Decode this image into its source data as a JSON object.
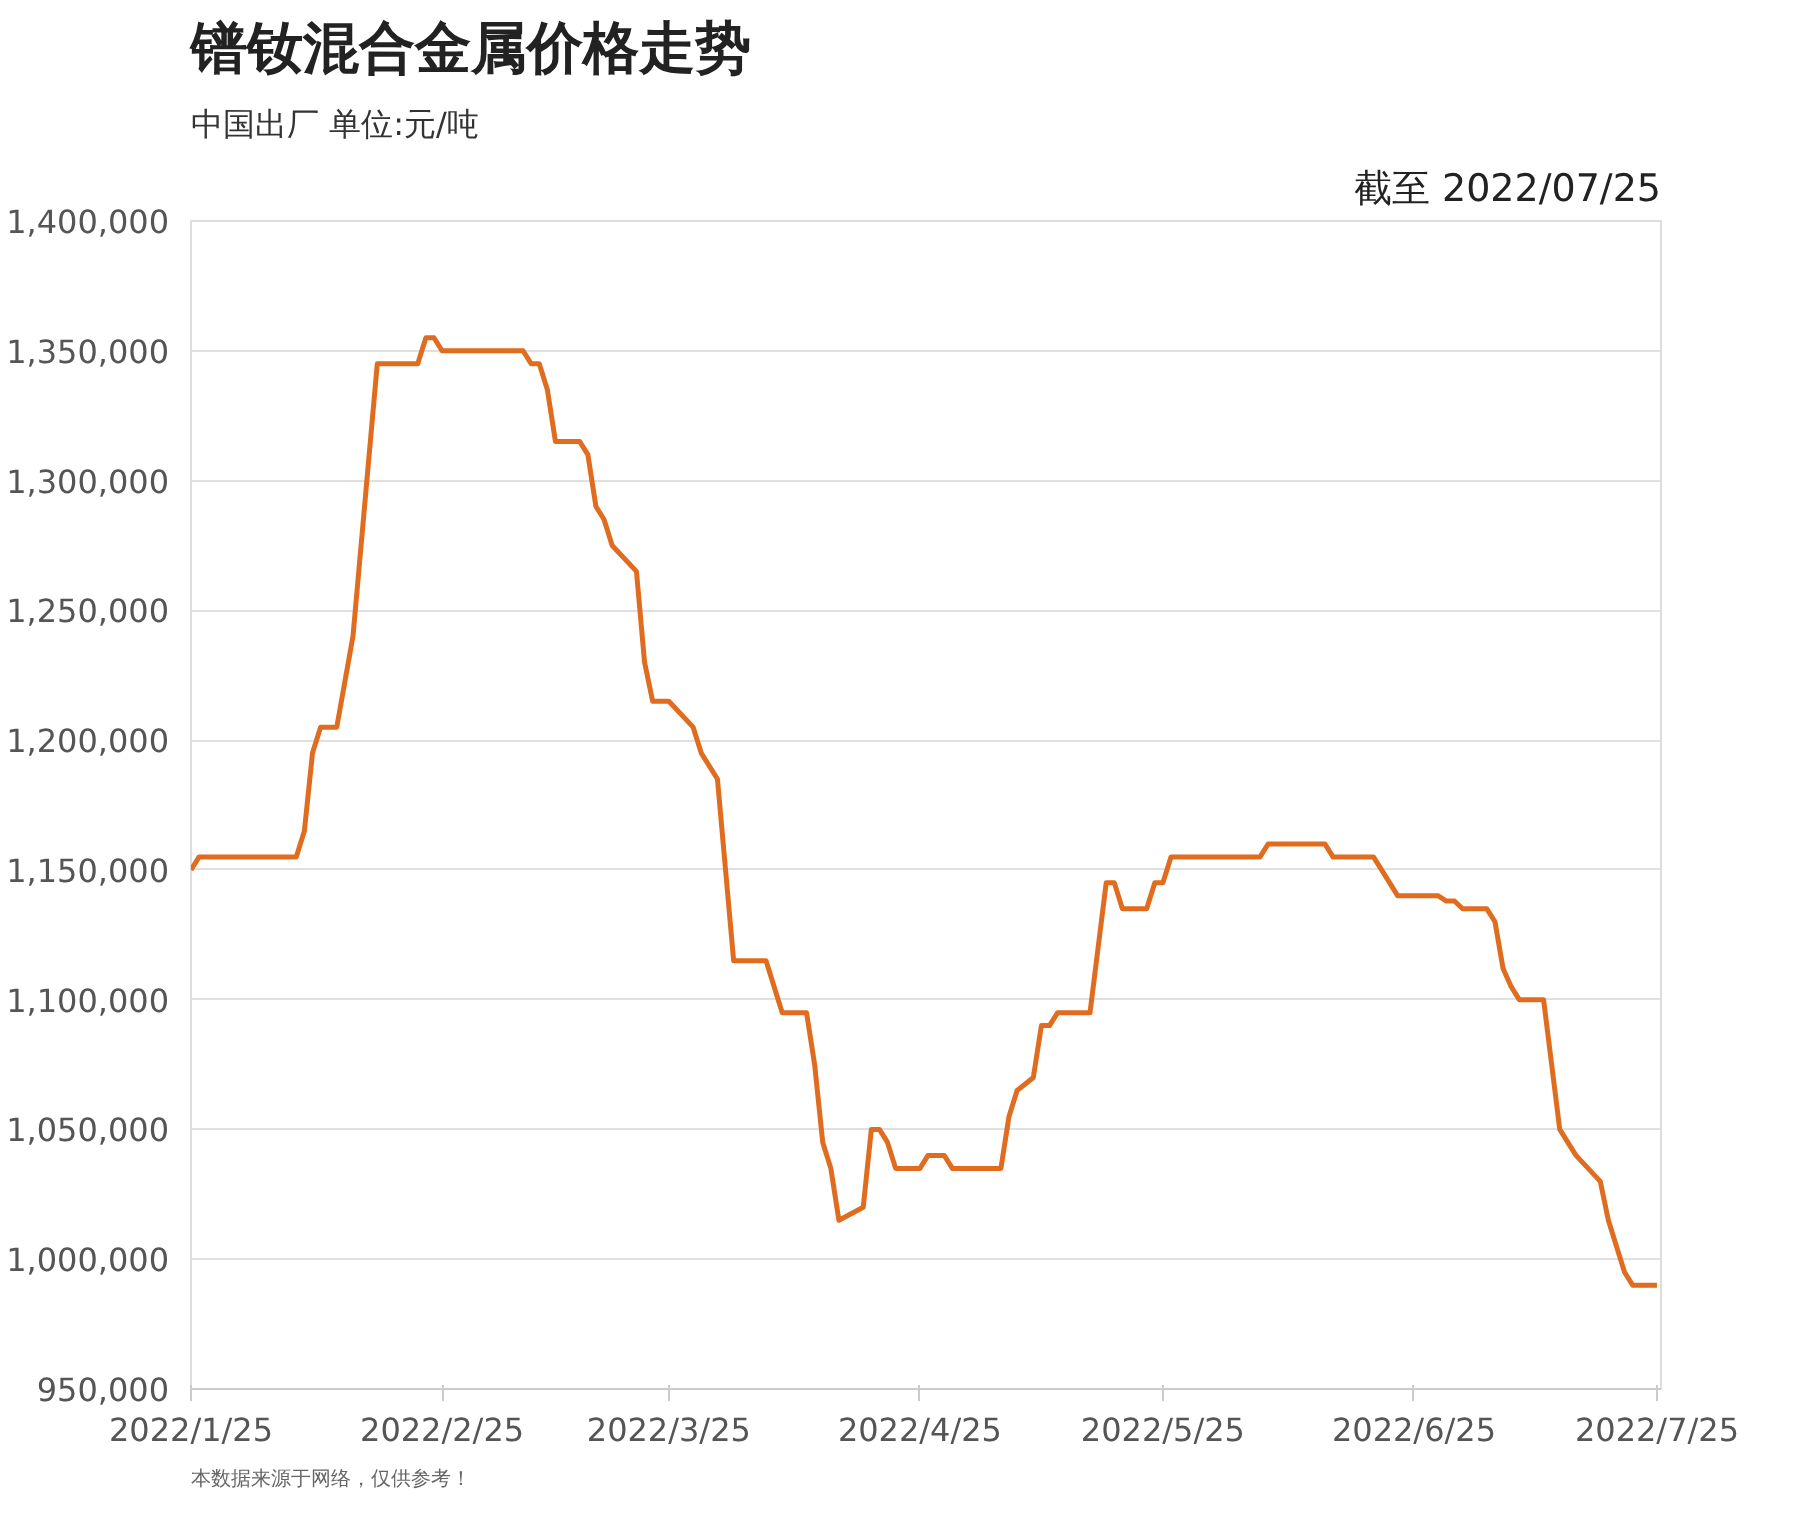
{
  "chart_data": {
    "type": "line",
    "title": "镨钕混合金属价格走势",
    "subtitle": "中国出厂  单位:元/吨",
    "annotations": [
      "截至 2022/07/25",
      "本数据来源于网络，仅供参考！"
    ],
    "x": [
      "2022-01-25",
      "2022-01-26",
      "2022-02-07",
      "2022-02-08",
      "2022-02-09",
      "2022-02-10",
      "2022-02-12",
      "2022-02-14",
      "2022-02-17",
      "2022-02-22",
      "2022-02-23",
      "2022-02-24",
      "2022-02-25",
      "2022-03-07",
      "2022-03-08",
      "2022-03-09",
      "2022-03-10",
      "2022-03-11",
      "2022-03-14",
      "2022-03-15",
      "2022-03-16",
      "2022-03-17",
      "2022-03-18",
      "2022-03-21",
      "2022-03-22",
      "2022-03-23",
      "2022-03-25",
      "2022-03-28",
      "2022-03-29",
      "2022-03-31",
      "2022-04-01",
      "2022-04-02",
      "2022-04-06",
      "2022-04-08",
      "2022-04-11",
      "2022-04-12",
      "2022-04-13",
      "2022-04-14",
      "2022-04-15",
      "2022-04-18",
      "2022-04-19",
      "2022-04-20",
      "2022-04-21",
      "2022-04-22",
      "2022-04-25",
      "2022-04-26",
      "2022-04-28",
      "2022-04-29",
      "2022-05-05",
      "2022-05-06",
      "2022-05-07",
      "2022-05-09",
      "2022-05-10",
      "2022-05-11",
      "2022-05-12",
      "2022-05-16",
      "2022-05-17",
      "2022-05-18",
      "2022-05-19",
      "2022-05-20",
      "2022-05-23",
      "2022-05-24",
      "2022-05-25",
      "2022-05-26",
      "2022-06-06",
      "2022-06-07",
      "2022-06-14",
      "2022-06-15",
      "2022-06-20",
      "2022-06-23",
      "2022-06-28",
      "2022-06-29",
      "2022-06-30",
      "2022-07-01",
      "2022-07-04",
      "2022-07-05",
      "2022-07-06",
      "2022-07-07",
      "2022-07-08",
      "2022-07-11",
      "2022-07-13",
      "2022-07-15",
      "2022-07-18",
      "2022-07-19",
      "2022-07-21",
      "2022-07-22",
      "2022-07-25"
    ],
    "series": [
      {
        "color": "#e06c1f",
        "values": [
          1150000,
          1155000,
          1155000,
          1165000,
          1195000,
          1205000,
          1205000,
          1240000,
          1345000,
          1345000,
          1355000,
          1355000,
          1350000,
          1350000,
          1345000,
          1345000,
          1335000,
          1315000,
          1315000,
          1310000,
          1290000,
          1285000,
          1275000,
          1265000,
          1230000,
          1215000,
          1215000,
          1205000,
          1195000,
          1185000,
          1150000,
          1115000,
          1115000,
          1095000,
          1095000,
          1075000,
          1045000,
          1035000,
          1015000,
          1020000,
          1050000,
          1050000,
          1045000,
          1035000,
          1035000,
          1040000,
          1040000,
          1035000,
          1035000,
          1055000,
          1065000,
          1070000,
          1090000,
          1090000,
          1095000,
          1095000,
          1120000,
          1145000,
          1145000,
          1135000,
          1135000,
          1145000,
          1145000,
          1155000,
          1155000,
          1160000,
          1160000,
          1155000,
          1155000,
          1140000,
          1140000,
          1138000,
          1138000,
          1135000,
          1135000,
          1130000,
          1112000,
          1105000,
          1100000,
          1100000,
          1050000,
          1040000,
          1030000,
          1015000,
          995000,
          990000,
          990000
        ]
      }
    ],
    "xlim": [
      "2022-01-25",
      "2022-07-25"
    ],
    "xticks": [
      {
        "value": "2022-01-25",
        "label": "2022/1/25"
      },
      {
        "value": "2022-02-25",
        "label": "2022/2/25"
      },
      {
        "value": "2022-03-25",
        "label": "2022/3/25"
      },
      {
        "value": "2022-04-25",
        "label": "2022/4/25"
      },
      {
        "value": "2022-05-25",
        "label": "2022/5/25"
      },
      {
        "value": "2022-06-25",
        "label": "2022/6/25"
      },
      {
        "value": "2022-07-25",
        "label": "2022/7/25"
      }
    ],
    "ylim": [
      950000,
      1400000
    ],
    "yticks": [
      {
        "value": 950000,
        "label": "950,000"
      },
      {
        "value": 1000000,
        "label": "1,000,000"
      },
      {
        "value": 1050000,
        "label": "1,050,000"
      },
      {
        "value": 1100000,
        "label": "1,100,000"
      },
      {
        "value": 1150000,
        "label": "1,150,000"
      },
      {
        "value": 1200000,
        "label": "1,200,000"
      },
      {
        "value": 1250000,
        "label": "1,250,000"
      },
      {
        "value": 1300000,
        "label": "1,300,000"
      },
      {
        "value": 1350000,
        "label": "1,350,000"
      },
      {
        "value": 1400000,
        "label": "1,400,000"
      }
    ],
    "grid": "y",
    "line_style": "solid"
  }
}
